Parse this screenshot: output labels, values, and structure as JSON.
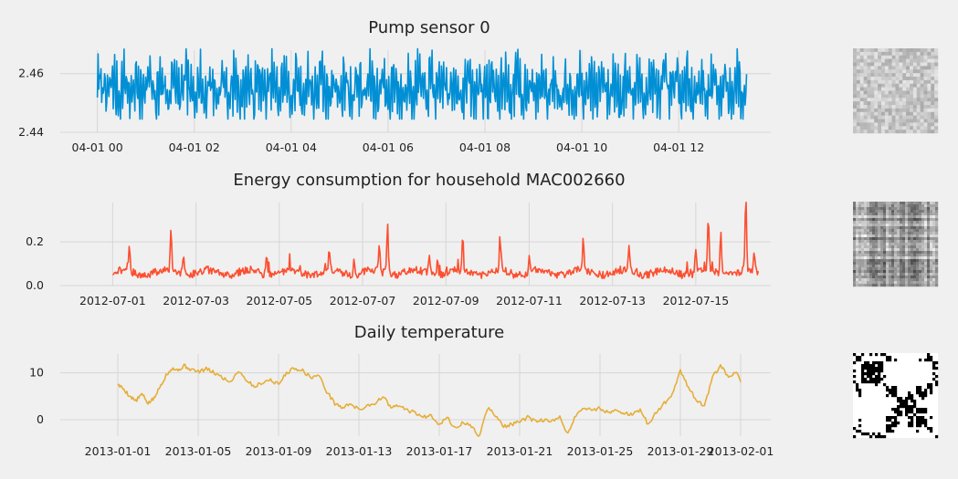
{
  "figure": {
    "background": "#f0f0f0",
    "grid_color": "#d6d6d6"
  },
  "chart_data": [
    {
      "type": "line",
      "title": "Pump sensor 0",
      "xlabel": "",
      "ylabel": "",
      "color": "#008fd5",
      "x_ticks": [
        "04-01 00",
        "04-01 02",
        "04-01 04",
        "04-01 06",
        "04-01 08",
        "04-01 10",
        "04-01 12"
      ],
      "x_tick_hours": [
        0,
        2,
        4,
        6,
        8,
        10,
        12
      ],
      "y_ticks": [
        "2.44",
        "2.46"
      ],
      "y_tick_values": [
        2.44,
        2.46
      ],
      "xlim_hours": [
        -0.2,
        13.9
      ],
      "ylim": [
        2.44,
        2.468
      ],
      "grid": true,
      "series": [
        {
          "x_hours_start": 0.0,
          "x_hours_end": 13.4,
          "y_range": [
            2.4445,
            2.4685
          ],
          "y_mean": 2.455,
          "pattern": "dense high-frequency oscillation"
        }
      ],
      "side_image": "sensor-recurrence-plot (light grey noise texture)"
    },
    {
      "type": "line",
      "title": "Energy consumption for household MAC002660",
      "xlabel": "",
      "ylabel": "",
      "color": "#fc4f30",
      "x_ticks": [
        "2012-07-01",
        "2012-07-03",
        "2012-07-05",
        "2012-07-07",
        "2012-07-09",
        "2012-07-11",
        "2012-07-13",
        "2012-07-15"
      ],
      "x_tick_days": [
        0,
        2,
        4,
        6,
        8,
        10,
        12,
        14
      ],
      "y_ticks": [
        "0.0",
        "0.2"
      ],
      "y_tick_values": [
        0.0,
        0.2
      ],
      "xlim_days": [
        -0.6,
        15.8
      ],
      "ylim": [
        0.0,
        0.38
      ],
      "grid": true,
      "series": [
        {
          "x_days_start": 0.0,
          "x_days_end": 15.5,
          "baseline": 0.06,
          "peaks": [
            {
              "day": 0.4,
              "value": 0.17
            },
            {
              "day": 1.4,
              "value": 0.26
            },
            {
              "day": 1.7,
              "value": 0.16
            },
            {
              "day": 3.7,
              "value": 0.14
            },
            {
              "day": 5.2,
              "value": 0.15
            },
            {
              "day": 5.8,
              "value": 0.13
            },
            {
              "day": 6.4,
              "value": 0.17
            },
            {
              "day": 6.6,
              "value": 0.29
            },
            {
              "day": 7.6,
              "value": 0.15
            },
            {
              "day": 7.8,
              "value": 0.13
            },
            {
              "day": 8.4,
              "value": 0.19
            },
            {
              "day": 9.3,
              "value": 0.21
            },
            {
              "day": 10.0,
              "value": 0.14
            },
            {
              "day": 11.3,
              "value": 0.21
            },
            {
              "day": 12.4,
              "value": 0.17
            },
            {
              "day": 14.0,
              "value": 0.16
            },
            {
              "day": 14.3,
              "value": 0.31
            },
            {
              "day": 14.6,
              "value": 0.27
            },
            {
              "day": 15.2,
              "value": 0.38
            },
            {
              "day": 15.4,
              "value": 0.14
            }
          ],
          "y_ending": 0.05
        }
      ],
      "side_image": "energy-recurrence-plot (grey banded texture)"
    },
    {
      "type": "line",
      "title": "Daily temperature",
      "xlabel": "",
      "ylabel": "",
      "color": "#e5ae38",
      "x_ticks": [
        "2013-01-01",
        "2013-01-05",
        "2013-01-09",
        "2013-01-13",
        "2013-01-17",
        "2013-01-21",
        "2013-01-25",
        "2013-01-29",
        "2013-02-01"
      ],
      "x_tick_days": [
        0,
        4,
        8,
        12,
        16,
        20,
        24,
        28,
        31
      ],
      "y_ticks": [
        "0",
        "10"
      ],
      "y_tick_values": [
        0,
        10
      ],
      "xlim_days": [
        -1.5,
        32.5
      ],
      "ylim": [
        -3.5,
        14.0
      ],
      "grid": true,
      "series": [
        {
          "x_days": [
            0.0,
            0.3,
            0.6,
            0.9,
            1.2,
            1.5,
            1.8,
            2.1,
            2.4,
            2.7,
            3.0,
            3.3,
            3.6,
            4.0,
            4.4,
            4.8,
            5.2,
            5.6,
            6.0,
            6.4,
            6.8,
            7.2,
            7.6,
            8.0,
            8.4,
            8.8,
            9.2,
            9.6,
            10.0,
            10.4,
            10.8,
            11.2,
            11.6,
            12.0,
            12.4,
            12.8,
            13.2,
            13.6,
            14.0,
            14.4,
            14.8,
            15.2,
            15.6,
            16.0,
            16.4,
            16.8,
            17.2,
            17.6,
            18.0,
            18.4,
            18.8,
            19.2,
            19.6,
            20.0,
            20.4,
            20.8,
            21.2,
            21.6,
            22.0,
            22.4,
            22.8,
            23.2,
            23.6,
            24.0,
            24.4,
            24.8,
            25.2,
            25.6,
            26.0,
            26.4,
            26.8,
            27.2,
            27.6,
            28.0,
            28.4,
            28.8,
            29.2,
            29.6,
            30.0,
            30.4,
            30.8,
            31.0
          ],
          "values": [
            7.5,
            6.5,
            5.0,
            4.0,
            5.5,
            3.5,
            4.5,
            7.0,
            9.5,
            11.0,
            10.5,
            11.5,
            10.8,
            10.2,
            10.8,
            10.0,
            9.0,
            8.0,
            10.5,
            8.5,
            7.0,
            8.0,
            8.5,
            7.5,
            10.0,
            11.0,
            10.5,
            9.0,
            9.5,
            6.0,
            3.5,
            2.5,
            3.5,
            2.0,
            3.0,
            3.5,
            5.0,
            2.5,
            3.0,
            2.0,
            1.5,
            0.5,
            1.0,
            -1.0,
            0.5,
            -2.0,
            -0.5,
            -1.5,
            -3.5,
            2.5,
            1.0,
            -1.5,
            -1.0,
            -0.5,
            0.5,
            -0.5,
            0.0,
            -0.5,
            0.5,
            -3.0,
            1.0,
            2.5,
            2.0,
            2.5,
            1.5,
            2.0,
            1.5,
            1.0,
            2.0,
            -1.0,
            1.5,
            3.5,
            5.5,
            10.5,
            7.0,
            4.0,
            3.0,
            9.0,
            11.5,
            9.0,
            10.0,
            8.0
          ]
        }
      ],
      "side_image": "temperature-recurrence-plot (black and white block pattern)"
    }
  ]
}
